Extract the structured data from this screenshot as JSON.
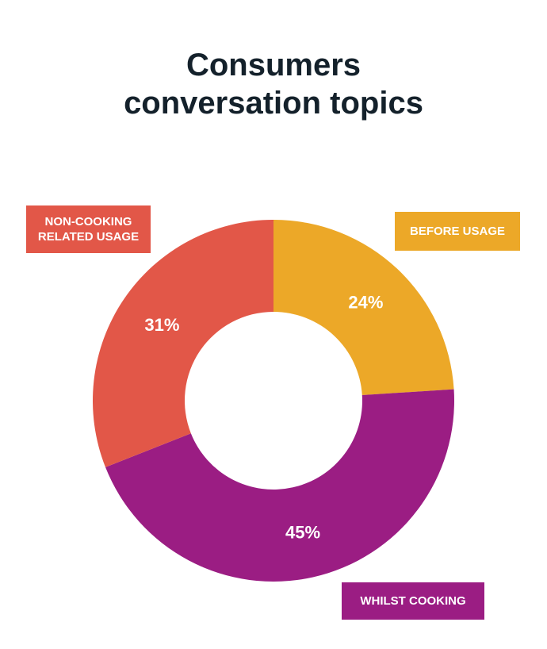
{
  "title_lines": [
    "Consumers",
    "conversation topics"
  ],
  "chart_data": {
    "type": "pie",
    "title": "Consumers conversation topics",
    "donut": true,
    "slices": [
      {
        "key": "before",
        "label": "BEFORE USAGE",
        "value": 24,
        "value_label": "24%",
        "color": "#eca828"
      },
      {
        "key": "whilst",
        "label": "WHILST COOKING",
        "value": 45,
        "value_label": "45%",
        "color": "#9b1d83"
      },
      {
        "key": "non_cooking",
        "label_lines": [
          "NON-COOKING",
          "RELATED USAGE"
        ],
        "value": 31,
        "value_label": "31%",
        "color": "#e25748"
      }
    ]
  },
  "legend": {
    "non_cooking": {
      "line1": "NON-COOKING",
      "line2": "RELATED USAGE",
      "color": "#e25748"
    },
    "before": {
      "text": "BEFORE USAGE",
      "color": "#eca828"
    },
    "whilst": {
      "text": "WHILST COOKING",
      "color": "#9b1d83"
    }
  }
}
